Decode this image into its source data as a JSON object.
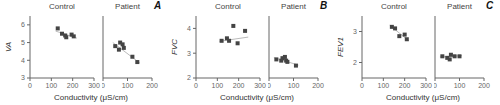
{
  "chart_data": [
    {
      "type": "scatter",
      "title": "Control",
      "y_label": "VA",
      "x_label": "Conductivity (μS/cm)",
      "xlim": [
        0,
        300
      ],
      "xticks": [
        0,
        100,
        200,
        300
      ],
      "ylim": [
        3.0,
        6.5
      ],
      "yticks": [
        3,
        4,
        5,
        6
      ],
      "series": [
        {
          "type": "scatter",
          "marker": "square",
          "color": "#444444",
          "x": [
            130,
            150,
            165,
            170,
            195,
            205
          ],
          "values": [
            5.8,
            5.5,
            5.4,
            5.3,
            5.45,
            5.35
          ]
        },
        {
          "type": "line",
          "color": "#bbbbbb",
          "x": [
            120,
            220
          ],
          "values": [
            5.65,
            5.25
          ]
        }
      ]
    },
    {
      "type": "scatter",
      "title": "Patient",
      "annotations": [
        "A"
      ],
      "xlim": [
        0,
        200
      ],
      "xticks": [
        0,
        100,
        200
      ],
      "ylim": [
        3.0,
        6.5
      ],
      "yticks": [
        3,
        4,
        5,
        6
      ],
      "series": [
        {
          "type": "scatter",
          "marker": "square",
          "color": "#444444",
          "x": [
            50,
            65,
            70,
            80,
            85,
            120,
            140
          ],
          "values": [
            4.8,
            4.6,
            5.0,
            4.9,
            4.7,
            4.2,
            3.9
          ]
        },
        {
          "type": "line",
          "color": "#bbbbbb",
          "x": [
            40,
            150
          ],
          "values": [
            5.0,
            3.85
          ]
        }
      ]
    },
    {
      "type": "scatter",
      "title": "Control",
      "y_label": "FVC",
      "x_label": "Conductivity (μS/cm)",
      "xlim": [
        0,
        300
      ],
      "xticks": [
        0,
        100,
        200,
        300
      ],
      "ylim": [
        2.0,
        4.5
      ],
      "yticks": [
        2,
        3,
        4
      ],
      "series": [
        {
          "type": "scatter",
          "marker": "square",
          "color": "#444444",
          "x": [
            120,
            145,
            155,
            175,
            195,
            230
          ],
          "values": [
            3.5,
            3.6,
            3.5,
            4.1,
            3.4,
            3.9
          ]
        },
        {
          "type": "line",
          "color": "#bbbbbb",
          "x": [
            110,
            245
          ],
          "values": [
            3.48,
            3.65
          ]
        }
      ]
    },
    {
      "type": "scatter",
      "title": "Patient",
      "annotations": [
        "B"
      ],
      "xlim": [
        0,
        200
      ],
      "xticks": [
        0,
        100,
        200
      ],
      "ylim": [
        2.0,
        4.5
      ],
      "yticks": [
        2,
        3,
        4
      ],
      "series": [
        {
          "type": "scatter",
          "marker": "square",
          "color": "#444444",
          "x": [
            30,
            50,
            55,
            65,
            70,
            75,
            110
          ],
          "values": [
            2.75,
            2.7,
            2.8,
            2.85,
            2.7,
            2.65,
            2.5
          ]
        },
        {
          "type": "line",
          "color": "#bbbbbb",
          "x": [
            20,
            120
          ],
          "values": [
            2.82,
            2.52
          ]
        }
      ]
    },
    {
      "type": "scatter",
      "title": "Control",
      "y_label": "FEV1",
      "x_label": "Conductivity (μS/cm)",
      "xlim": [
        0,
        300
      ],
      "xticks": [
        0,
        100,
        200,
        300
      ],
      "ylim": [
        1.5,
        3.5
      ],
      "yticks": [
        2,
        3
      ],
      "series": [
        {
          "type": "scatter",
          "marker": "square",
          "color": "#444444",
          "x": [
            140,
            155,
            175,
            200,
            210
          ],
          "values": [
            3.15,
            3.1,
            2.85,
            2.9,
            2.75
          ]
        },
        {
          "type": "line",
          "color": "#bbbbbb",
          "x": [
            130,
            220
          ],
          "values": [
            3.2,
            2.7
          ]
        }
      ]
    },
    {
      "type": "scatter",
      "title": "Patient",
      "annotations": [
        "C"
      ],
      "xlim": [
        0,
        200
      ],
      "xticks": [
        0,
        100,
        200
      ],
      "ylim": [
        1.5,
        3.5
      ],
      "yticks": [
        2,
        3
      ],
      "series": [
        {
          "type": "scatter",
          "marker": "square",
          "color": "#444444",
          "x": [
            30,
            50,
            60,
            65,
            80,
            100
          ],
          "values": [
            2.2,
            2.15,
            2.1,
            2.25,
            2.2,
            2.2
          ]
        },
        {
          "type": "line",
          "color": "#bbbbbb",
          "x": [
            20,
            110
          ],
          "values": [
            2.18,
            2.22
          ]
        }
      ]
    }
  ]
}
